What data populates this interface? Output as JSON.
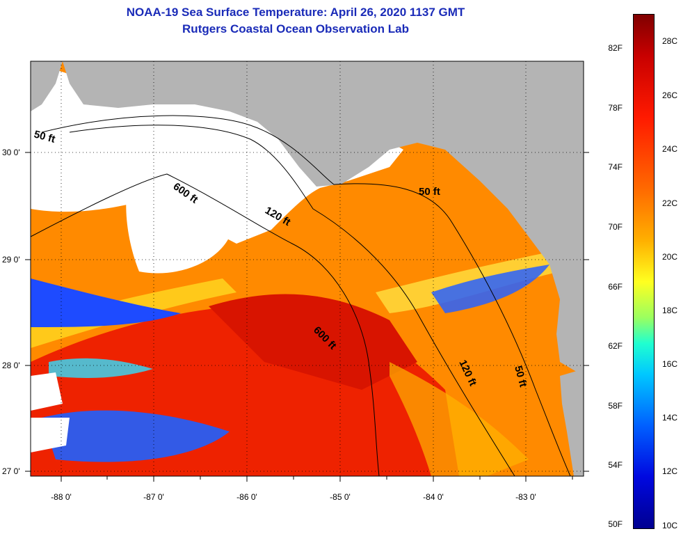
{
  "title": {
    "line1": "NOAA-19 Sea Surface Temperature:  April 26, 2020 1137 GMT",
    "line2": "Rutgers Coastal Ocean Observation Lab"
  },
  "axes": {
    "lat_labels": [
      "30 0'",
      "29 0'",
      "28 0'",
      "27 0'"
    ],
    "lon_labels": [
      "-88 0'",
      "-87 0'",
      "-86 0'",
      "-85 0'",
      "-84 0'",
      "-83 0'"
    ]
  },
  "contours": {
    "west": {
      "d50": "50 ft",
      "d600": "600 ft",
      "d120": "120 ft"
    },
    "south": {
      "d600": "600 ft",
      "d120": "120 ft",
      "d50": "50 ft"
    },
    "top_east": {
      "d50": "50 ft"
    }
  },
  "colorbar": {
    "fahrenheit": [
      "82F",
      "78F",
      "74F",
      "70F",
      "66F",
      "62F",
      "58F",
      "54F",
      "50F"
    ],
    "celsius": [
      "28C",
      "26C",
      "24C",
      "22C",
      "20C",
      "18C",
      "16C",
      "14C",
      "12C",
      "10C"
    ]
  },
  "colors": {
    "land": "#b4b4b4",
    "cloud": "#ffffff",
    "title": "#1a2bb8",
    "warm": "#ee2200",
    "mid": "#ff8a00",
    "cool": "#1e4bff"
  }
}
